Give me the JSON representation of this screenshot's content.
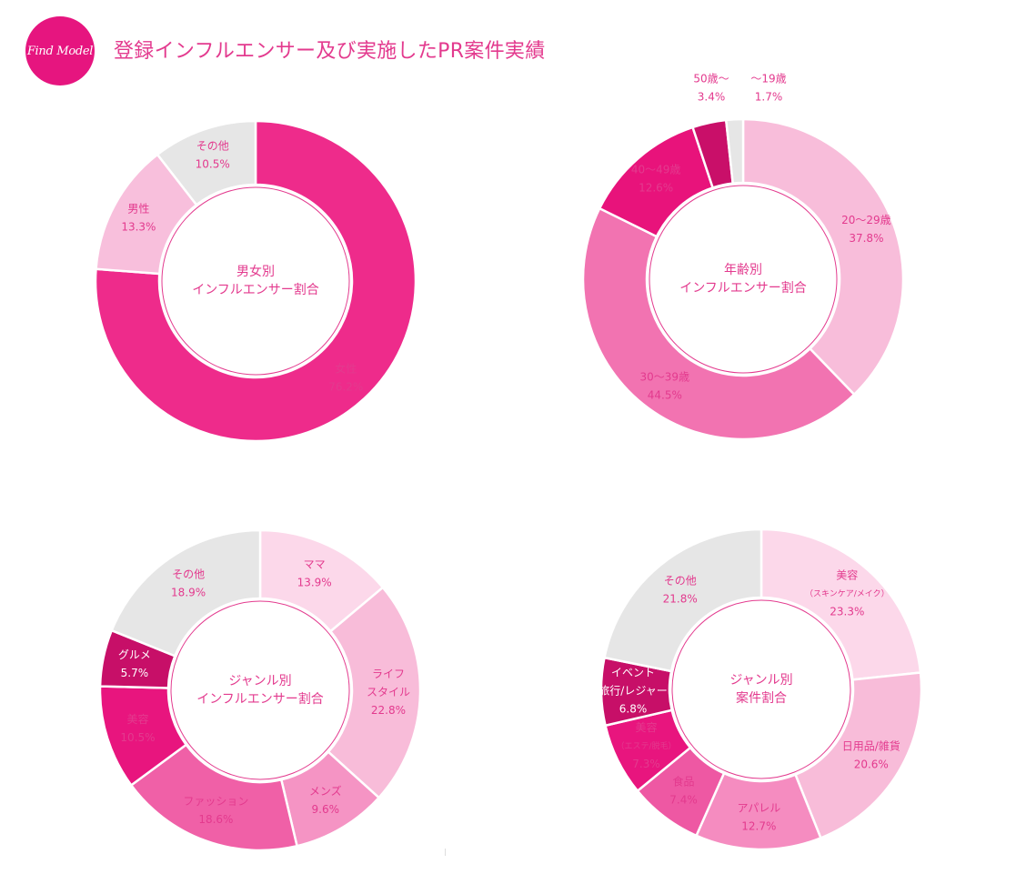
{
  "header": {
    "logo_text": "Find Model",
    "title": "登録インフルエンサー及び実施したPR案件実績"
  },
  "colors": {
    "brand": "#e6157f",
    "title": "#e33a8e",
    "label_pink": "#e33a8e",
    "label_white": "#ffffff"
  },
  "chart_data": [
    {
      "type": "pie",
      "donut": true,
      "center_label": [
        "男女別",
        "インフルエンサー割合"
      ],
      "slices": [
        {
          "label": [
            "女性"
          ],
          "value": 76.2,
          "value_label": "76.2%",
          "color": "#ee2b8b"
        },
        {
          "label": [
            "男性"
          ],
          "value": 13.3,
          "value_label": "13.3%",
          "color": "#f8bfdc"
        },
        {
          "label": [
            "その他"
          ],
          "value": 10.5,
          "value_label": "10.5%",
          "color": "#e6e6e6"
        }
      ]
    },
    {
      "type": "pie",
      "donut": true,
      "center_label": [
        "年齢別",
        "インフルエンサー割合"
      ],
      "slices": [
        {
          "label": [
            "20〜29歳"
          ],
          "value": 37.8,
          "value_label": "37.8%",
          "color": "#f8bdda"
        },
        {
          "label": [
            "30〜39歳"
          ],
          "value": 44.5,
          "value_label": "44.5%",
          "color": "#f273b1"
        },
        {
          "label": [
            "40〜49歳"
          ],
          "value": 12.6,
          "value_label": "12.6%",
          "color": "#e8137b"
        },
        {
          "label": [
            "50歳〜"
          ],
          "value": 3.4,
          "value_label": "3.4%",
          "color": "#c90f69"
        },
        {
          "label": [
            "〜19歳"
          ],
          "value": 1.7,
          "value_label": "1.7%",
          "color": "#e6e6e6"
        }
      ]
    },
    {
      "type": "pie",
      "donut": true,
      "center_label": [
        "ジャンル別",
        "インフルエンサー割合"
      ],
      "slices": [
        {
          "label": [
            "ママ"
          ],
          "value": 13.9,
          "value_label": "13.9%",
          "color": "#fcd8ea"
        },
        {
          "label": [
            "ライフ",
            "スタイル"
          ],
          "value": 22.8,
          "value_label": "22.8%",
          "color": "#f8bcd9"
        },
        {
          "label": [
            "メンズ"
          ],
          "value": 9.6,
          "value_label": "9.6%",
          "color": "#f594c4"
        },
        {
          "label": [
            "ファッション"
          ],
          "value": 18.6,
          "value_label": "18.6%",
          "color": "#f060a7"
        },
        {
          "label": [
            "美容"
          ],
          "value": 10.5,
          "value_label": "10.5%",
          "color": "#e8157e"
        },
        {
          "label": [
            "グルメ"
          ],
          "value": 5.7,
          "value_label": "5.7%",
          "color": "#c70f68"
        },
        {
          "label": [
            "その他"
          ],
          "value": 18.9,
          "value_label": "18.9%",
          "color": "#e6e6e6"
        }
      ]
    },
    {
      "type": "pie",
      "donut": true,
      "center_label": [
        "ジャンル別",
        "案件割合"
      ],
      "slices": [
        {
          "label": [
            "美容",
            "（スキンケア/メイク）"
          ],
          "value": 23.3,
          "value_label": "23.3%",
          "color": "#fcd8ea"
        },
        {
          "label": [
            "日用品/雑貨"
          ],
          "value": 20.6,
          "value_label": "20.6%",
          "color": "#f8bcd9"
        },
        {
          "label": [
            "アパレル"
          ],
          "value": 12.7,
          "value_label": "12.7%",
          "color": "#f58cc0"
        },
        {
          "label": [
            "食品"
          ],
          "value": 7.4,
          "value_label": "7.4%",
          "color": "#ee58a3"
        },
        {
          "label": [
            "美容",
            "（エステ/脱毛）"
          ],
          "value": 7.3,
          "value_label": "7.3%",
          "color": "#e8157e"
        },
        {
          "label": [
            "イベント",
            "旅行/レジャー"
          ],
          "value": 6.8,
          "value_label": "6.8%",
          "color": "#c70f68"
        },
        {
          "label": [
            "その他"
          ],
          "value": 21.8,
          "value_label": "21.8%",
          "color": "#e6e6e6"
        }
      ]
    }
  ]
}
